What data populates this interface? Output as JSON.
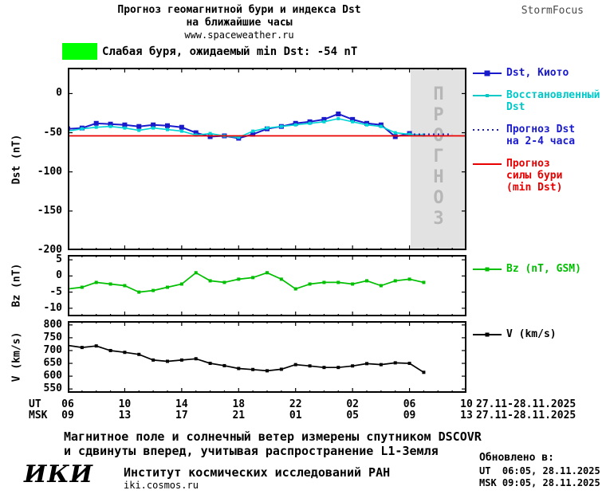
{
  "header": {
    "title_line1": "Прогноз геомагнитной бури и индекса Dst",
    "title_line2": "на ближайшие часы",
    "subtitle": "www.spaceweather.ru",
    "brand": "StormFocus"
  },
  "alert": {
    "storm_text": "Слабая буря, ожидаемый min Dst: -54 nT",
    "swatch_color": "#00ff00"
  },
  "colors": {
    "forecast_band": "#e2e2e2",
    "forecast_text": "#b6b6b6",
    "axis": "#000000"
  },
  "chart_data": [
    {
      "type": "line",
      "panel": "dst",
      "ylabel": "Dst (nT)",
      "ylim": [
        -200,
        33
      ],
      "yticks": [
        0,
        -50,
        -100,
        -150,
        -200
      ],
      "xlim": [
        6,
        34
      ],
      "xticks": [
        6,
        10,
        14,
        18,
        22,
        26,
        30,
        34
      ],
      "forecast_region": [
        30.08,
        34
      ],
      "forecast_label": "ПРОГНОЗ",
      "series": [
        {
          "id": "dst-kyoto",
          "name": "Dst, Киото",
          "color": "#1a1acd",
          "width": 2,
          "marker": true,
          "marker_size": 6,
          "x": [
            6,
            7,
            8,
            9,
            10,
            11,
            12,
            13,
            14,
            15,
            16,
            17,
            18,
            19,
            20,
            21,
            22,
            23,
            24,
            25,
            26,
            27,
            28,
            29,
            30
          ],
          "y": [
            -45,
            -44,
            -38,
            -39,
            -40,
            -42,
            -40,
            -41,
            -43,
            -50,
            -55,
            -54,
            -57,
            -52,
            -45,
            -42,
            -38,
            -36,
            -33,
            -26,
            -33,
            -38,
            -40,
            -55,
            -51
          ]
        },
        {
          "id": "dst-restored",
          "name": "Восстановленный Dst",
          "color": "#00d4d4",
          "width": 1.6,
          "marker": true,
          "marker_size": 4,
          "x": [
            6,
            7,
            8,
            9,
            10,
            11,
            12,
            13,
            14,
            15,
            16,
            17,
            18,
            19,
            20,
            21,
            22,
            23,
            24,
            25,
            26,
            27,
            28,
            29,
            30,
            31
          ],
          "y": [
            -48,
            -45,
            -43,
            -42,
            -44,
            -47,
            -44,
            -46,
            -48,
            -53,
            -51,
            -54,
            -56,
            -48,
            -44,
            -42,
            -40,
            -38,
            -36,
            -32,
            -36,
            -40,
            -42,
            -50,
            -52,
            -53
          ]
        },
        {
          "id": "dst-forecast",
          "name": "Прогноз Dst на 2-4 часа",
          "color": "#1a1acd",
          "width": 2,
          "style": "dotted",
          "x": [
            30.3,
            31.2,
            32.1,
            33
          ],
          "y": [
            -52,
            -52,
            -52,
            -52
          ]
        },
        {
          "id": "storm-min",
          "name": "Прогноз силы бури (min Dst)",
          "color": "#e80000",
          "width": 1.8,
          "x": [
            6,
            34
          ],
          "y": [
            -54,
            -54
          ]
        }
      ]
    },
    {
      "type": "line",
      "panel": "bz",
      "ylabel": "Bz (nT)",
      "ylim": [
        -12.5,
        6.5
      ],
      "yticks": [
        5,
        0,
        -5,
        -10
      ],
      "xlim": [
        6,
        34
      ],
      "xticks": [
        6,
        10,
        14,
        18,
        22,
        26,
        30,
        34
      ],
      "series": [
        {
          "id": "bz",
          "name": "Bz (nT, GSM)",
          "color": "#00bf00",
          "width": 1.7,
          "marker": true,
          "marker_size": 4,
          "x": [
            6,
            7,
            8,
            9,
            10,
            11,
            12,
            13,
            14,
            15,
            16,
            17,
            18,
            19,
            20,
            21,
            22,
            23,
            24,
            25,
            26,
            27,
            28,
            29,
            30,
            31
          ],
          "y": [
            -4,
            -3.5,
            -2,
            -2.5,
            -3,
            -5,
            -4.5,
            -3.5,
            -2.5,
            1,
            -1.5,
            -2,
            -1,
            -0.5,
            1,
            -1,
            -4,
            -2.5,
            -2,
            -2,
            -2.5,
            -1.5,
            -3,
            -1.5,
            -1,
            -2
          ]
        }
      ]
    },
    {
      "type": "line",
      "panel": "v",
      "ylabel": "V (km/s)",
      "ylim": [
        535,
        815
      ],
      "yticks": [
        800,
        750,
        700,
        650,
        600,
        550
      ],
      "xlim": [
        6,
        34
      ],
      "xticks": [
        6,
        10,
        14,
        18,
        22,
        26,
        30,
        34
      ],
      "series": [
        {
          "id": "v",
          "name": "V (km/s)",
          "color": "#000000",
          "width": 1.7,
          "marker": true,
          "marker_size": 4,
          "x": [
            6,
            7,
            8,
            9,
            10,
            11,
            12,
            13,
            14,
            15,
            16,
            17,
            18,
            19,
            20,
            21,
            22,
            23,
            24,
            25,
            26,
            27,
            28,
            29,
            30,
            31
          ],
          "y": [
            720,
            712,
            718,
            700,
            693,
            685,
            663,
            658,
            663,
            668,
            650,
            641,
            630,
            626,
            621,
            627,
            645,
            640,
            634,
            634,
            640,
            649,
            645,
            652,
            650,
            615
          ]
        }
      ]
    }
  ],
  "legends": [
    {
      "entries": [
        {
          "label_lines": [
            "Dst, Киото"
          ],
          "color": "#1a1acd",
          "line": "solid",
          "marker": true,
          "marker_size": 7
        },
        {
          "label_lines": [
            "Восстановленный",
            "Dst"
          ],
          "color": "#00c9c9",
          "line": "solid",
          "marker": true,
          "marker_size": 4
        },
        {
          "label_lines": [
            "Прогноз Dst",
            "на 2-4 часа"
          ],
          "color": "#1a1acd",
          "line": "dotted"
        },
        {
          "label_lines": [
            "Прогноз",
            "силы бури",
            "(min Dst)"
          ],
          "color": "#e80000",
          "line": "solid"
        }
      ]
    },
    {
      "entries": [
        {
          "label_lines": [
            "Bz (nT, GSM)"
          ],
          "color": "#00bf00",
          "line": "solid",
          "marker": true,
          "marker_size": 5
        }
      ]
    },
    {
      "entries": [
        {
          "label_lines": [
            "V (km/s)"
          ],
          "color": "#000000",
          "line": "solid",
          "marker": true,
          "marker_size": 5
        }
      ]
    }
  ],
  "xaxis": {
    "ut_label": "UT",
    "msk_label": "MSK",
    "tick_values": [
      6,
      10,
      14,
      18,
      22,
      26,
      30,
      34
    ],
    "ut_tick_labels": [
      "06",
      "10",
      "14",
      "18",
      "22",
      "02",
      "06",
      "10"
    ],
    "msk_tick_labels": [
      "09",
      "13",
      "17",
      "21",
      "01",
      "05",
      "09",
      "13"
    ],
    "ut_date_range": "27.11-28.11.2025",
    "msk_date_range": "27.11-28.11.2025"
  },
  "footer": {
    "note_line1": "Магнитное поле и солнечный ветер измерены спутником DSCOVR",
    "note_line2": "и сдвинуты вперед, учитывая распространение L1-Земля",
    "logo": "ИКИ",
    "institute": "Институт космических исследований РАН",
    "site": "iki.cosmos.ru",
    "updated_label": "Обновлено в:",
    "updated_ut": "UT  06:05, 28.11.2025",
    "updated_msk": "MSK 09:05, 28.11.2025"
  }
}
